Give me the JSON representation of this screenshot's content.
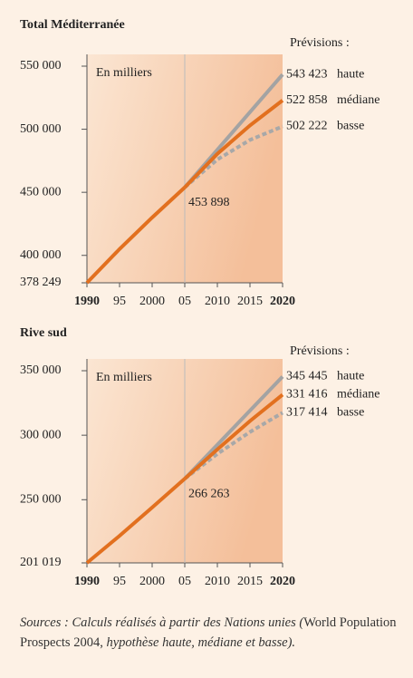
{
  "chart_data": [
    {
      "type": "line",
      "title": "Total Méditerranée",
      "subtitle": "Prévisions :",
      "annotation": "En milliers",
      "x": [
        1990,
        1995,
        2000,
        2005,
        2010,
        2015,
        2020
      ],
      "xlim": [
        1990,
        2020
      ],
      "xticks": [
        1990,
        {
          "value": 1995,
          "label": "95"
        },
        2000,
        {
          "value": 2005,
          "label": "05"
        },
        2010,
        2015,
        2020
      ],
      "ylim": [
        378249,
        550000
      ],
      "yticks": [
        {
          "value": 550000,
          "label": "550 000"
        },
        {
          "value": 500000,
          "label": "500 000"
        },
        {
          "value": 450000,
          "label": "450 000"
        },
        {
          "value": 400000,
          "label": "400 000"
        },
        {
          "value": 378249,
          "label": "378 249"
        }
      ],
      "series": [
        {
          "color": "#a3a3a3",
          "name": "haute",
          "values": [
            null,
            null,
            null,
            453898,
            483740,
            513580,
            543423
          ],
          "value_labels": [
            null,
            null,
            null,
            null,
            null,
            null,
            "543 423"
          ]
        },
        {
          "color": "#a8a8a8",
          "style": "dashed",
          "name": "basse",
          "values": [
            null,
            null,
            null,
            453898,
            476000,
            491500,
            502222
          ],
          "value_labels": [
            null,
            null,
            null,
            null,
            null,
            null,
            "502 222"
          ]
        },
        {
          "color": "#e2701f",
          "name": "médiane",
          "values": [
            null,
            null,
            null,
            453898,
            480500,
            503000,
            522858
          ],
          "value_labels": [
            null,
            null,
            null,
            null,
            null,
            null,
            "522 858"
          ]
        },
        {
          "color": "#e2701f",
          "values": [
            378249,
            405000,
            430000,
            453898,
            null,
            null,
            null
          ],
          "value_labels": [
            null,
            null,
            null,
            "453 898",
            null,
            null,
            null
          ]
        }
      ]
    },
    {
      "type": "line",
      "title": "Rive sud",
      "subtitle": "Prévisions :",
      "annotation": "En milliers",
      "x": [
        1990,
        1995,
        2000,
        2005,
        2010,
        2015,
        2020
      ],
      "xlim": [
        1990,
        2020
      ],
      "xticks": [
        1990,
        {
          "value": 1995,
          "label": "95"
        },
        2000,
        {
          "value": 2005,
          "label": "05"
        },
        2010,
        2015,
        2020
      ],
      "ylim": [
        201019,
        350000
      ],
      "yticks": [
        {
          "value": 350000,
          "label": "350 000"
        },
        {
          "value": 300000,
          "label": "300 000"
        },
        {
          "value": 250000,
          "label": "250 000"
        },
        {
          "value": 201019,
          "label": "201 019"
        }
      ],
      "series": [
        {
          "color": "#a3a3a3",
          "name": "haute",
          "values": [
            null,
            null,
            null,
            266263,
            292657,
            319051,
            345445
          ],
          "value_labels": [
            null,
            null,
            null,
            null,
            null,
            null,
            "345 445"
          ]
        },
        {
          "color": "#a8a8a8",
          "style": "dashed",
          "name": "basse",
          "values": [
            null,
            null,
            null,
            266263,
            285500,
            302500,
            317414
          ],
          "value_labels": [
            null,
            null,
            null,
            null,
            null,
            null,
            "317 414"
          ]
        },
        {
          "color": "#e2701f",
          "name": "médiane",
          "values": [
            null,
            null,
            null,
            266263,
            289000,
            311000,
            331416
          ],
          "value_labels": [
            null,
            null,
            null,
            null,
            null,
            null,
            "331 416"
          ]
        },
        {
          "color": "#e2701f",
          "values": [
            201019,
            222000,
            244000,
            266263,
            null,
            null,
            null
          ],
          "value_labels": [
            null,
            null,
            null,
            "266 263",
            null,
            null,
            null
          ]
        }
      ]
    }
  ],
  "source": [
    {
      "text": "Sources : Calculs réalisés à partir des Nations unies (",
      "italic": true
    },
    {
      "text": "World Population Prospects 2004, ",
      "italic": false
    },
    {
      "text": "hypothèse haute, médiane et basse).",
      "italic": true
    }
  ]
}
